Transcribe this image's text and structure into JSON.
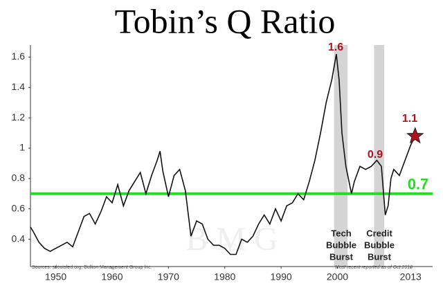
{
  "chart_data": {
    "type": "line",
    "title": "Tobin’s Q Ratio",
    "x": [
      1945.5,
      1946,
      1947,
      1948,
      1949,
      1950,
      1951,
      1952,
      1953,
      1954,
      1955,
      1956,
      1957,
      1958,
      1959,
      1960,
      1961,
      1962,
      1963,
      1964,
      1965,
      1966,
      1967,
      1968,
      1968.5,
      1969,
      1970,
      1971,
      1972,
      1973,
      1974,
      1975,
      1976,
      1977,
      1978,
      1979,
      1980,
      1981,
      1982,
      1983,
      1984,
      1985,
      1986,
      1987,
      1988,
      1989,
      1990,
      1991,
      1992,
      1993,
      1994,
      1995,
      1996,
      1997,
      1998,
      1999,
      1999.8,
      2000.3,
      2000.8,
      2001.5,
      2002.5,
      2003,
      2004,
      2005,
      2006,
      2007,
      2007.8,
      2008.5,
      2009,
      2009.5,
      2010,
      2011,
      2012,
      2013,
      2013.8
    ],
    "values": [
      0.48,
      0.45,
      0.38,
      0.34,
      0.32,
      0.34,
      0.36,
      0.38,
      0.35,
      0.45,
      0.55,
      0.57,
      0.5,
      0.58,
      0.68,
      0.64,
      0.76,
      0.62,
      0.72,
      0.78,
      0.84,
      0.7,
      0.82,
      0.92,
      0.98,
      0.85,
      0.68,
      0.82,
      0.86,
      0.72,
      0.42,
      0.52,
      0.5,
      0.4,
      0.36,
      0.36,
      0.34,
      0.3,
      0.3,
      0.4,
      0.38,
      0.42,
      0.5,
      0.56,
      0.5,
      0.6,
      0.52,
      0.62,
      0.64,
      0.7,
      0.66,
      0.78,
      0.92,
      1.1,
      1.3,
      1.45,
      1.62,
      1.45,
      1.1,
      0.88,
      0.7,
      0.78,
      0.88,
      0.86,
      0.88,
      0.92,
      0.88,
      0.56,
      0.62,
      0.8,
      0.86,
      0.82,
      0.92,
      1.02,
      1.08
    ],
    "color": "#111111",
    "xlim": [
      1945.5,
      2016.9
    ],
    "xticks": [
      1950,
      1960,
      1970,
      1980,
      1990,
      2000,
      2013
    ],
    "ylim": [
      0.22,
      1.68
    ],
    "yticks": [
      0.4,
      0.6,
      0.8,
      1.0,
      1.2,
      1.4,
      1.6
    ],
    "reference_line": {
      "value": 0.7,
      "color": "#22dd22"
    },
    "shaded_periods": [
      [
        1999.4,
        2001.8
      ],
      [
        2006.5,
        2008.3
      ]
    ],
    "shade_color": "#d4d4d4",
    "annotations": [
      {
        "text": "1.6",
        "color": "#b0101c"
      },
      {
        "text": "0.9",
        "color": "#b0101c"
      },
      {
        "text": "1.1",
        "color": "#b0101c"
      },
      {
        "lines": [
          "Tech",
          "Bubble",
          "Burst"
        ]
      },
      {
        "lines": [
          "Credit",
          "Bubble",
          "Burst"
        ]
      }
    ],
    "source": "Sources: stlouisfed.org; Bullion Management Group Inc.",
    "note": "Most recent reported as of Oct 2013",
    "watermark": "B M G"
  }
}
